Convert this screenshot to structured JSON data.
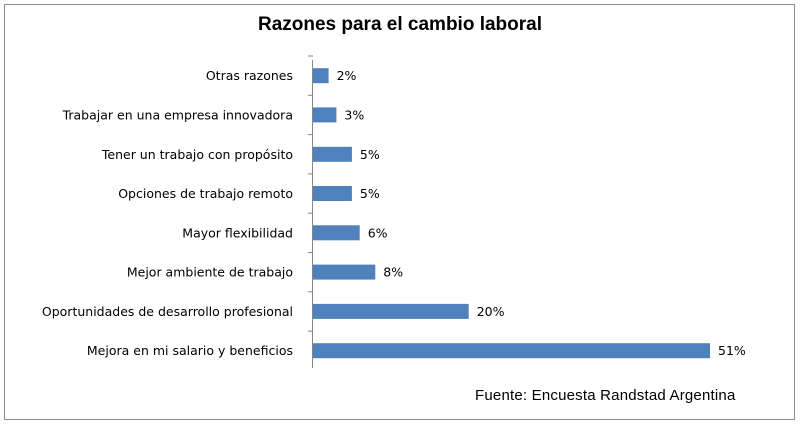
{
  "chart_data": {
    "type": "bar",
    "orientation": "horizontal",
    "title": "Razones para el cambio laboral",
    "categories": [
      "Otras razones",
      "Trabajar en una empresa innovadora",
      "Tener un trabajo con propósito",
      "Opciones de trabajo remoto",
      "Mayor flexibilidad",
      "Mejor ambiente de trabajo",
      "Oportunidades de desarrollo profesional",
      "Mejora en mi salario y beneficios"
    ],
    "values": [
      2,
      3,
      5,
      5,
      6,
      8,
      20,
      51
    ],
    "value_labels": [
      "2%",
      "3%",
      "5%",
      "5%",
      "6%",
      "8%",
      "20%",
      "51%"
    ],
    "bar_color": "#4f81bd",
    "xlim": [
      0,
      51
    ],
    "legend": "none",
    "grid": false
  },
  "source": "Fuente:  Encuesta Randstad Argentina"
}
